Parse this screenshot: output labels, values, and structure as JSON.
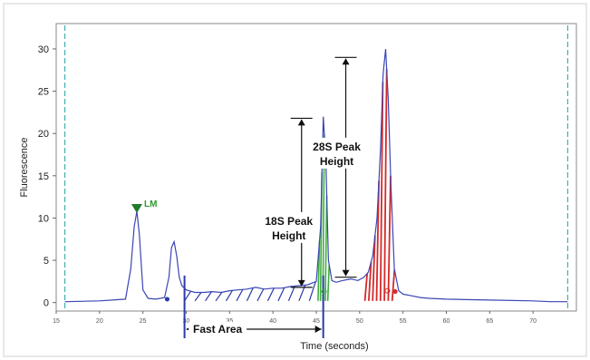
{
  "chart_data": {
    "type": "line",
    "xlabel": "Time (seconds)",
    "ylabel": "Fluorescence",
    "xlim": [
      15,
      75
    ],
    "ylim": [
      -1,
      33
    ],
    "x_ticks": [
      15,
      20,
      25,
      30,
      35,
      40,
      45,
      50,
      55,
      60,
      65,
      70
    ],
    "y_ticks": [
      0,
      5,
      10,
      15,
      20,
      25,
      30
    ],
    "grid": false,
    "colors": {
      "trace": "#3a46b4",
      "lm": "#2e9a2e",
      "peak18s": "#3fae3f",
      "peak28s": "#d42a2a",
      "fast": "#2c3aa8",
      "window": "#3fb0b0"
    },
    "series": [
      {
        "x": [
          16,
          20,
          23,
          23.6,
          24.0,
          24.3,
          24.6,
          25.0,
          25.6,
          26.5,
          27.5,
          28.0,
          28.3,
          28.6,
          28.9,
          29.2,
          29.5,
          30,
          31,
          32,
          33,
          34,
          35,
          36,
          37,
          38,
          39,
          40,
          41,
          42,
          43,
          44,
          44.5,
          45.0,
          45.5,
          45.8,
          46.1,
          46.4,
          46.8,
          47.3,
          48,
          49,
          49.8,
          50.5,
          51,
          51.5,
          52,
          52.4,
          52.7,
          53.0,
          53.3,
          53.6,
          54.0,
          54.5,
          55,
          56,
          57,
          58,
          60,
          65,
          70,
          72,
          74
        ],
        "y": [
          0.1,
          0.2,
          0.4,
          4,
          9,
          10.8,
          8,
          1.5,
          0.5,
          0.4,
          0.6,
          3,
          6.5,
          7.2,
          5.5,
          3,
          2,
          1.5,
          1.2,
          1.2,
          1.3,
          1.2,
          1.4,
          1.5,
          1.6,
          1.8,
          1.6,
          1.7,
          1.7,
          1.9,
          2.0,
          2.1,
          2.3,
          2.5,
          9,
          22,
          17,
          5,
          2.6,
          2.4,
          2.6,
          2.8,
          2.6,
          3.0,
          3.6,
          5.5,
          10,
          18,
          27,
          30,
          24,
          14,
          4,
          1.4,
          1.0,
          0.8,
          0.6,
          0.5,
          0.4,
          0.3,
          0.2,
          0.1,
          0.1
        ]
      }
    ],
    "annotations": {
      "lm_label": "LM",
      "peak18s_label": [
        "18S Peak",
        "Height"
      ],
      "peak28s_label": [
        "28S Peak",
        "Height"
      ],
      "fast_area_label": "Fast Area"
    },
    "markers": {
      "lm": {
        "x": 24.3,
        "y": 10.8
      },
      "fast_area": {
        "start": 29.8,
        "end": 45.8
      },
      "peak18s": {
        "x": 45.8,
        "top": 21.8,
        "base": 1.8,
        "bracket_x": 43.3
      },
      "peak28s": {
        "x": 53.0,
        "top": 29.0,
        "base": 3.0,
        "bracket_x": 48.4
      },
      "window_lines": [
        16,
        74
      ]
    }
  }
}
